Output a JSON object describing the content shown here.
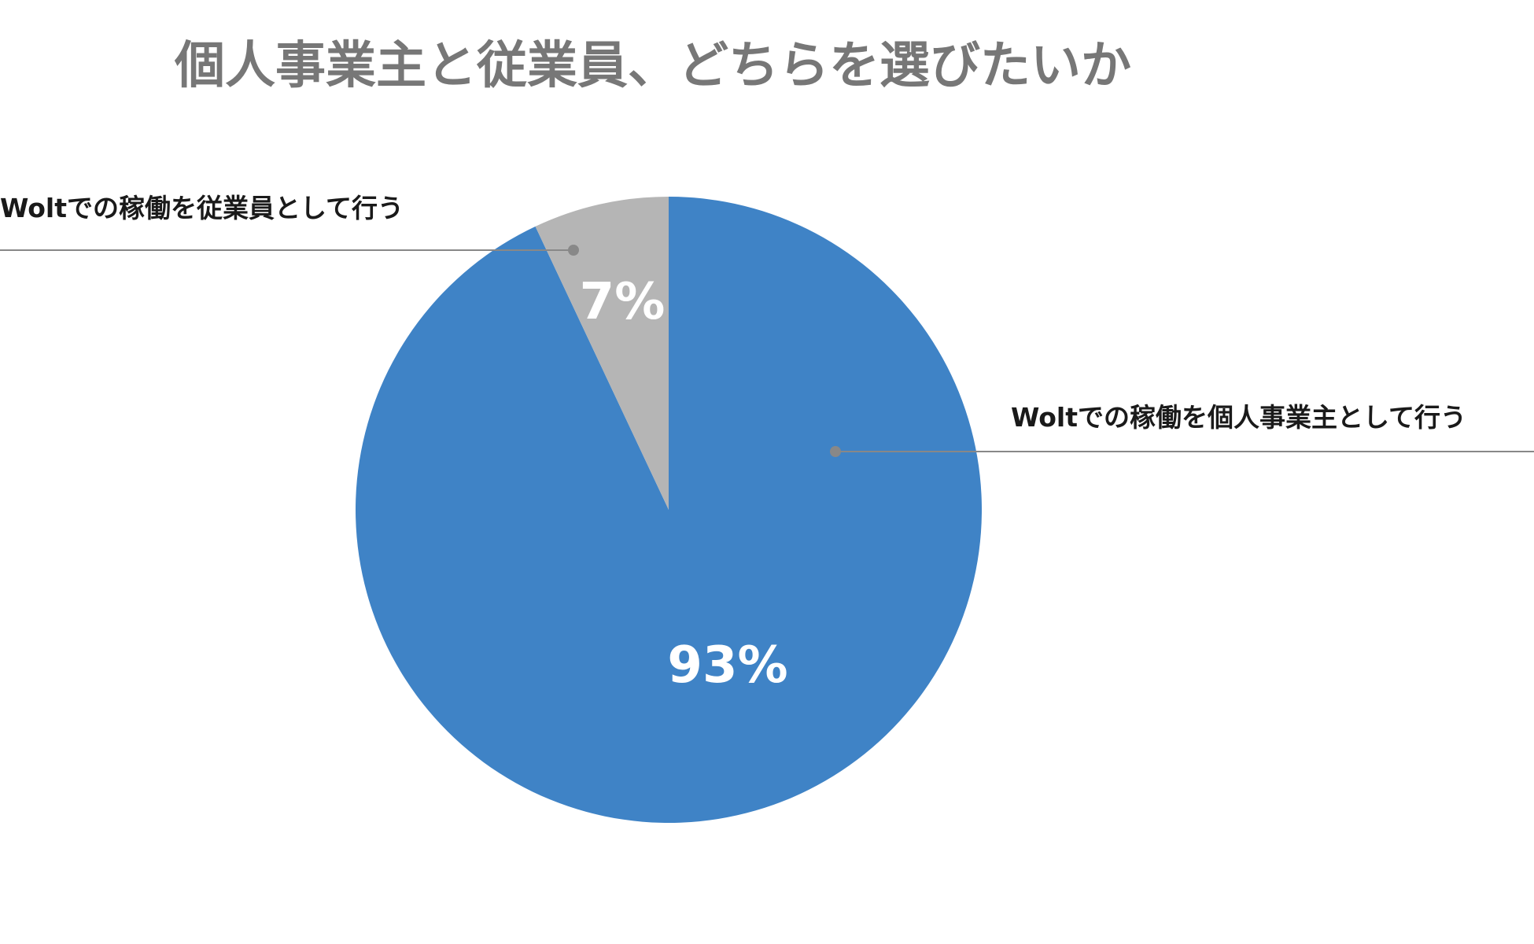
{
  "chart_data": {
    "type": "pie",
    "title": "個人事業主と従業員、どちらを選びたいか",
    "series": [
      {
        "categories": [
          "Woltでの稼働を個人事業主として行う",
          "Woltでの稼働を従業員として行う"
        ],
        "values": [
          93,
          7
        ],
        "labels": [
          "93%",
          "7%"
        ],
        "colors": [
          "#3F83C6",
          "#B5B5B5"
        ]
      }
    ],
    "legend": "none",
    "callout_line_color": "#888888"
  }
}
